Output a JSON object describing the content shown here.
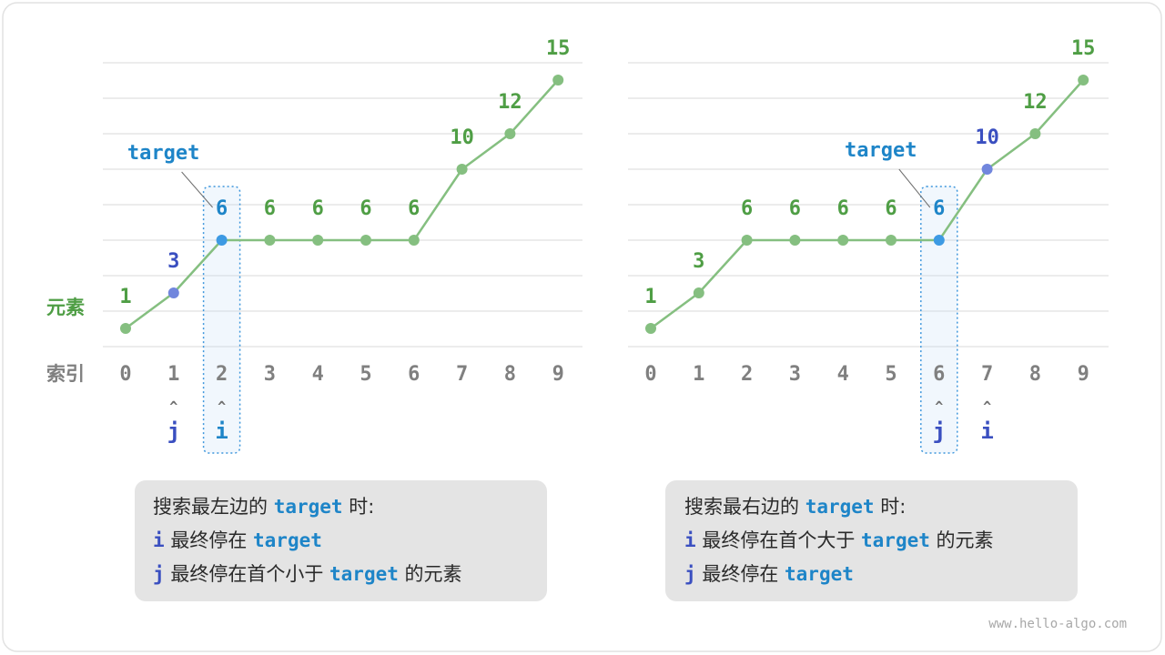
{
  "colors": {
    "value_green": "#4f9e45",
    "line_green": "#85bf80",
    "index_gray": "#808080",
    "target_blue": "#1e85c8",
    "pointer_blue": "#3a4fc0",
    "pointer_dot": "#7186dd",
    "target_dot": "#3d9ae3",
    "note_bg": "#e4e4e4"
  },
  "axis": {
    "elements_label": "元素",
    "index_label": "索引"
  },
  "watermark": "www.hello-algo.com",
  "panels": [
    {
      "id": "left",
      "values": [
        1,
        3,
        6,
        6,
        6,
        6,
        6,
        10,
        12,
        15
      ],
      "value_labels": [
        "1",
        "3",
        "6",
        "6",
        "6",
        "6",
        "6",
        "10",
        "12",
        "15"
      ],
      "indices": [
        "0",
        "1",
        "2",
        "3",
        "4",
        "5",
        "6",
        "7",
        "8",
        "9"
      ],
      "target_label": "target",
      "target_index": 2,
      "pointers": [
        {
          "label": "j",
          "caret": "^",
          "index": 1,
          "color": "#3a4fc0",
          "marks_dot": true
        },
        {
          "label": "i",
          "caret": "^",
          "index": 2,
          "color": "#1e85c8",
          "marks_dot": false
        }
      ],
      "note": {
        "line1_pre": "搜索最左边的 ",
        "line1_code": "target",
        "line1_post": " 时:",
        "line2_var": "i",
        "line2_pre": " 最终停在 ",
        "line2_code": "target",
        "line2_post": "",
        "line3_var": "j",
        "line3_pre": " 最终停在首个小于 ",
        "line3_code": "target",
        "line3_post": " 的元素"
      }
    },
    {
      "id": "right",
      "values": [
        1,
        3,
        6,
        6,
        6,
        6,
        6,
        10,
        12,
        15
      ],
      "value_labels": [
        "1",
        "3",
        "6",
        "6",
        "6",
        "6",
        "6",
        "10",
        "12",
        "15"
      ],
      "indices": [
        "0",
        "1",
        "2",
        "3",
        "4",
        "5",
        "6",
        "7",
        "8",
        "9"
      ],
      "target_label": "target",
      "target_index": 6,
      "pointers": [
        {
          "label": "j",
          "caret": "^",
          "index": 6,
          "color": "#3a4fc0",
          "marks_dot": false
        },
        {
          "label": "i",
          "caret": "^",
          "index": 7,
          "color": "#3a4fc0",
          "marks_dot": true
        }
      ],
      "note": {
        "line1_pre": "搜索最右边的 ",
        "line1_code": "target",
        "line1_post": " 时:",
        "line2_var": "i",
        "line2_pre": " 最终停在首个大于 ",
        "line2_code": "target",
        "line2_post": " 的元素",
        "line3_var": "j",
        "line3_pre": " 最终停在 ",
        "line3_code": "target",
        "line3_post": ""
      }
    }
  ]
}
